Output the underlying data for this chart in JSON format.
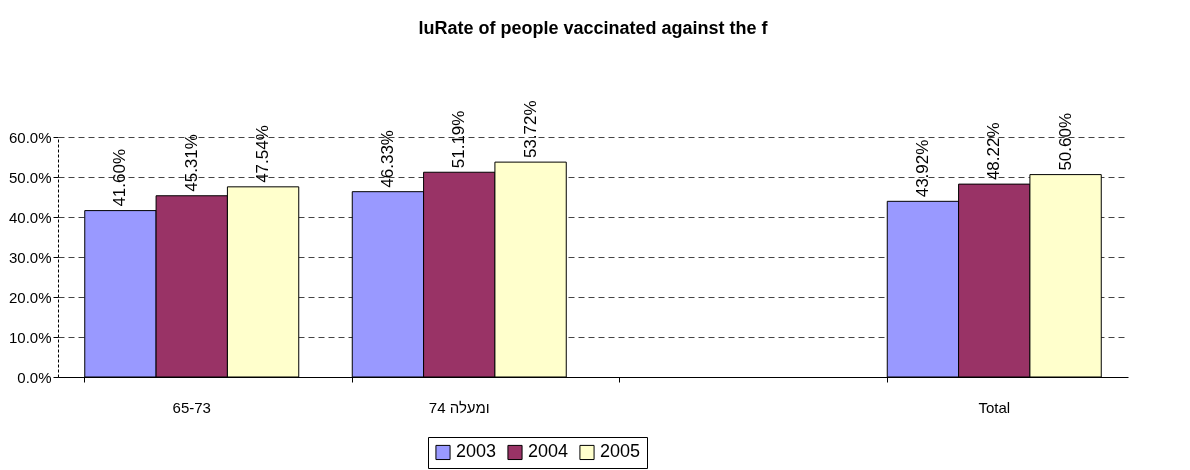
{
  "chart_data": {
    "type": "bar",
    "title": "luRate of people vaccinated against the f",
    "categories": [
      "65-73",
      "74 ומעלה",
      null,
      "Total"
    ],
    "series": [
      {
        "name": "2003",
        "color": "#9999ff",
        "values": [
          41.6,
          46.33,
          null,
          43.92
        ],
        "value_labels": [
          "41.60%",
          "46.33%",
          null,
          "43.92%"
        ]
      },
      {
        "name": "2004",
        "color": "#993366",
        "values": [
          45.31,
          51.19,
          null,
          48.22
        ],
        "value_labels": [
          "45.31%",
          "51.19%",
          null,
          "48.22%"
        ]
      },
      {
        "name": "2005",
        "color": "#ffffcc",
        "values": [
          47.54,
          53.72,
          null,
          50.6
        ],
        "value_labels": [
          "47.54%",
          "53.72%",
          null,
          "50.60%"
        ]
      }
    ],
    "ylim": [
      0,
      60
    ],
    "yticks": [
      {
        "value": 0,
        "label": "0.0%"
      },
      {
        "value": 10,
        "label": "10.0%"
      },
      {
        "value": 20,
        "label": "20.0%"
      },
      {
        "value": 30,
        "label": "30.0%"
      },
      {
        "value": 40,
        "label": "40.0%"
      },
      {
        "value": 50,
        "label": "50.0%"
      },
      {
        "value": 60,
        "label": "60.0%"
      }
    ],
    "grid": "y",
    "legend": "bottom"
  }
}
